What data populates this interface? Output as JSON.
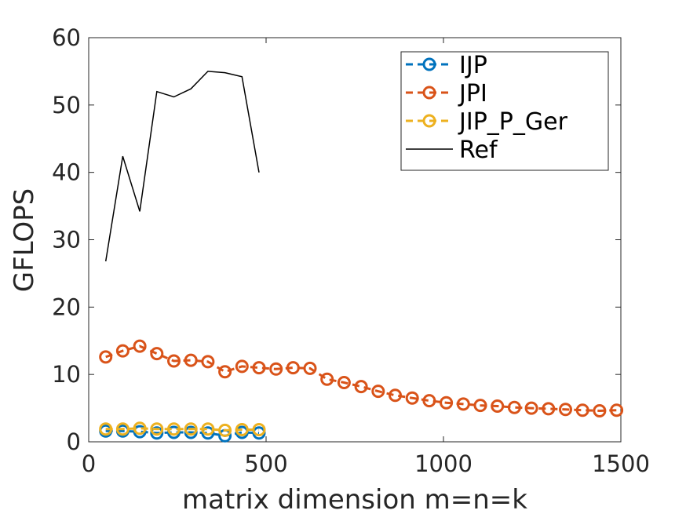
{
  "chart_data": {
    "type": "line",
    "xlabel": "matrix dimension m=n=k",
    "ylabel": "GFLOPS",
    "xlim": [
      0,
      1500
    ],
    "ylim": [
      0,
      60
    ],
    "xticks": [
      0,
      500,
      1000,
      1500
    ],
    "yticks": [
      0,
      10,
      20,
      30,
      40,
      50,
      60
    ],
    "xtick_labels": [
      "0",
      "500",
      "1000",
      "1500"
    ],
    "ytick_labels": [
      "0",
      "10",
      "20",
      "30",
      "40",
      "50",
      "60"
    ],
    "grid": false,
    "legend_position": "top-right",
    "series": [
      {
        "name": "IJP",
        "color": "#0072BD",
        "style": "dashed",
        "marker": "circle",
        "x": [
          48,
          96,
          144,
          192,
          240,
          288,
          336,
          384,
          432,
          480
        ],
        "y": [
          1.6,
          1.6,
          1.5,
          1.3,
          1.4,
          1.4,
          1.3,
          0.9,
          1.4,
          1.3
        ]
      },
      {
        "name": "JPI",
        "color": "#D95319",
        "style": "dashed",
        "marker": "circle",
        "x": [
          48,
          96,
          144,
          192,
          240,
          288,
          336,
          384,
          432,
          480,
          528,
          576,
          624,
          672,
          720,
          768,
          816,
          864,
          912,
          960,
          1008,
          1056,
          1104,
          1152,
          1200,
          1248,
          1296,
          1344,
          1392,
          1440,
          1488
        ],
        "y": [
          12.6,
          13.5,
          14.2,
          13.1,
          12.0,
          12.1,
          11.9,
          10.4,
          11.2,
          11.0,
          10.8,
          11.0,
          10.9,
          9.3,
          8.8,
          8.2,
          7.5,
          6.9,
          6.5,
          6.1,
          5.8,
          5.6,
          5.4,
          5.3,
          5.1,
          5.0,
          4.9,
          4.8,
          4.7,
          4.6,
          4.7
        ]
      },
      {
        "name": "JIP_P_Ger",
        "color": "#EDB120",
        "style": "dashed",
        "marker": "circle",
        "x": [
          48,
          96,
          144,
          192,
          240,
          288,
          336,
          384,
          432,
          480
        ],
        "y": [
          1.9,
          1.9,
          2.0,
          1.9,
          1.9,
          1.9,
          1.9,
          1.7,
          1.8,
          1.8
        ]
      },
      {
        "name": "Ref",
        "color": "#000000",
        "style": "solid",
        "marker": "none",
        "x": [
          48,
          96,
          144,
          192,
          240,
          288,
          336,
          384,
          432,
          480
        ],
        "y": [
          26.8,
          42.4,
          34.2,
          52.0,
          51.2,
          52.4,
          55.0,
          54.8,
          54.2,
          40.0
        ]
      }
    ]
  }
}
